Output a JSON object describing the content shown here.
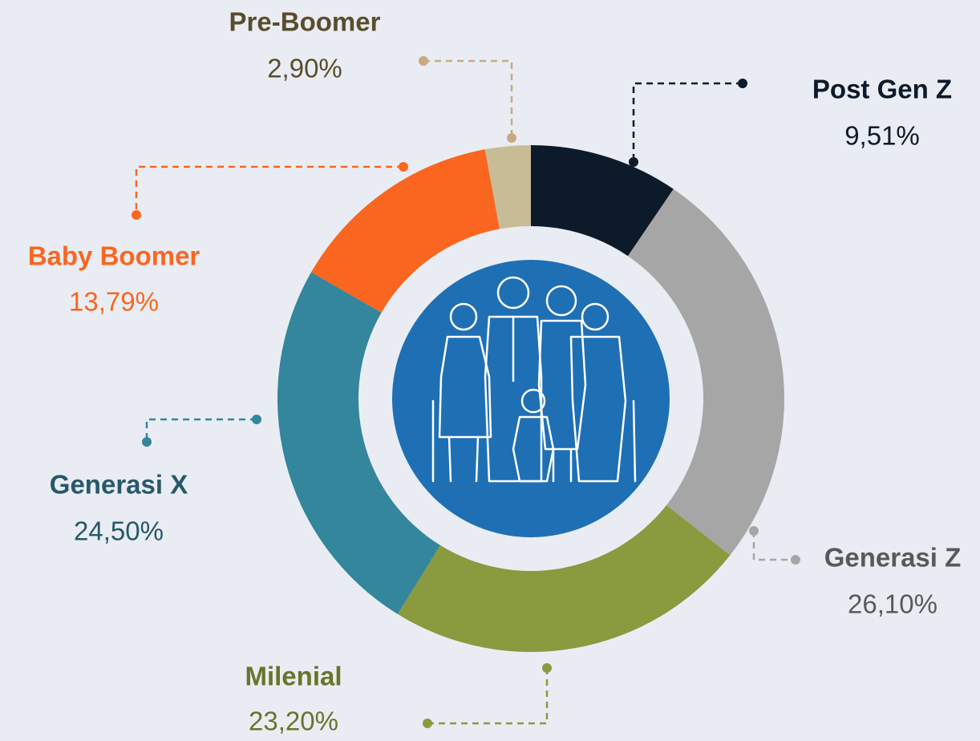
{
  "chart_data": {
    "type": "donut",
    "categories": [
      "Post Gen Z",
      "Generasi Z",
      "Milenial",
      "Generasi X",
      "Baby Boomer",
      "Pre-Boomer"
    ],
    "values": [
      9.51,
      26.1,
      23.2,
      24.5,
      13.79,
      2.9
    ],
    "value_labels": [
      "9,51%",
      "26,10%",
      "23,20%",
      "24,50%",
      "13,79%",
      "2,90%"
    ],
    "colors": [
      "#0d1a2a",
      "#a6a6a6",
      "#8a9a3f",
      "#33869c",
      "#fa6620",
      "#c8bc96"
    ]
  }
}
